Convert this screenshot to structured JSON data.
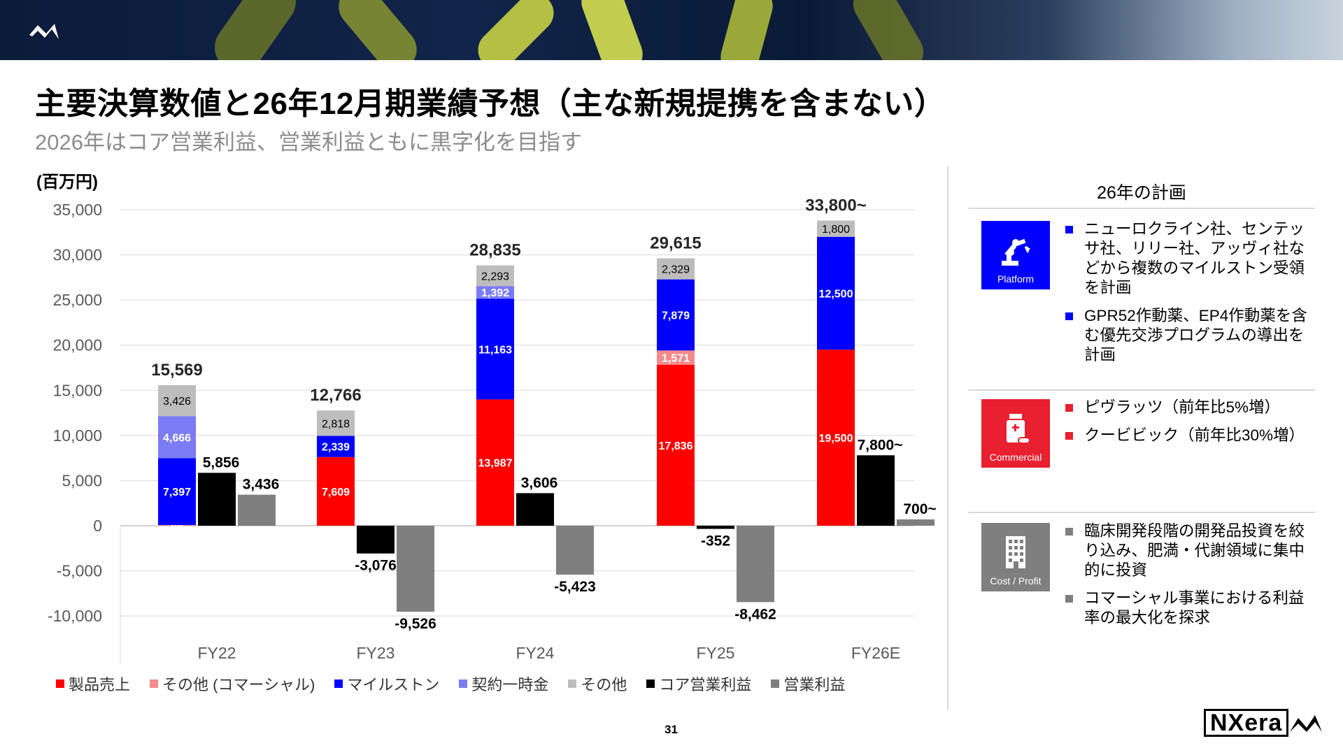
{
  "header": {
    "title": "主要決算数値と26年12月期業績予想（主な新規提携を含まない）",
    "subtitle": "2026年はコア営業利益、営業利益ともに黒字化を目指す"
  },
  "chart": {
    "unit_label": "(百万円)",
    "y_ticks": [
      "35,000",
      "30,000",
      "25,000",
      "20,000",
      "15,000",
      "10,000",
      "5,000",
      "0",
      "-5,000",
      "-10,000"
    ],
    "legend": [
      {
        "label": "製品売上",
        "color": "#ff0000"
      },
      {
        "label": "その他 (コマーシャル)",
        "color": "#f28c8c"
      },
      {
        "label": "マイルストン",
        "color": "#0000ff"
      },
      {
        "label": "契約一時金",
        "color": "#7b7bf5"
      },
      {
        "label": "その他",
        "color": "#bdbdbd"
      },
      {
        "label": "コア営業利益",
        "color": "#000000"
      },
      {
        "label": "営業利益",
        "color": "#7f7f7f"
      }
    ]
  },
  "chart_data": {
    "type": "bar",
    "categories": [
      "FY22",
      "FY23",
      "FY24",
      "FY25",
      "FY26E"
    ],
    "ylim": [
      -10000,
      35000
    ],
    "ylabel": "(百万円)",
    "stacked_revenue": {
      "series": [
        {
          "name": "製品売上",
          "values": [
            0,
            7609,
            13987,
            17836,
            19500
          ],
          "labels": [
            "",
            "7,609",
            "13,987",
            "17,836",
            "19,500"
          ],
          "color": "#ff0000",
          "label_color": "#ffffff"
        },
        {
          "name": "その他 (コマーシャル)",
          "values": [
            80,
            0,
            0,
            1571,
            0
          ],
          "labels": [
            "80",
            "",
            "",
            "1,571",
            ""
          ],
          "color": "#f28c8c",
          "label_color": "#ffffff"
        },
        {
          "name": "マイルストン",
          "values": [
            7397,
            2339,
            11163,
            7879,
            12500
          ],
          "labels": [
            "7,397",
            "2,339",
            "11,163",
            "7,879",
            "12,500"
          ],
          "color": "#0000ff",
          "label_color": "#ffffff"
        },
        {
          "name": "契約一時金",
          "values": [
            4666,
            0,
            1392,
            0,
            0
          ],
          "labels": [
            "4,666",
            "",
            "1,392",
            "",
            ""
          ],
          "color": "#7b7bf5",
          "label_color": "#ffffff"
        },
        {
          "name": "その他",
          "values": [
            3426,
            2818,
            2293,
            2329,
            1800
          ],
          "labels": [
            "3,426",
            "2,818",
            "2,293",
            "2,329",
            "1,800"
          ],
          "color": "#bdbdbd",
          "label_color": "#000000"
        }
      ],
      "totals": [
        15569,
        12766,
        28835,
        29615,
        33800
      ],
      "total_labels": [
        "15,569",
        "12,766",
        "28,835",
        "29,615",
        "33,800~"
      ]
    },
    "series": [
      {
        "name": "コア営業利益",
        "values": [
          5856,
          -3076,
          3606,
          -352,
          7800
        ],
        "labels": [
          "5,856",
          "-3,076",
          "3,606",
          "-352",
          "7,800~"
        ],
        "color": "#000000"
      },
      {
        "name": "営業利益",
        "values": [
          3436,
          -9526,
          -5423,
          -8462,
          700
        ],
        "labels": [
          "3,436",
          "-9,526",
          "-5,423",
          "-8,462",
          "700~"
        ],
        "color": "#7f7f7f"
      }
    ]
  },
  "plan": {
    "header": "26年の計画",
    "sections": [
      {
        "icon": "robot-arm-icon",
        "icon_label": "Platform",
        "color": "#0000ff",
        "bullets": [
          "ニューロクライン社、センテッサ社、リリー社、アッヴィ社などから複数のマイルストン受領を計画",
          "GPR52作動薬、EP4作動薬を含む優先交渉プログラムの導出を計画"
        ]
      },
      {
        "icon": "medicine-bottle-icon",
        "icon_label": "Commercial",
        "color": "#e8202f",
        "bullets": [
          "ピヴラッツ（前年比5%増）",
          "クービビック（前年比30%増）"
        ]
      },
      {
        "icon": "building-icon",
        "icon_label": "Cost / Profit",
        "color": "#7f7f7f",
        "bullets": [
          "臨床開発段階の開発品投資を絞り込み、肥満・代謝領域に集中的に投資",
          "コマーシャル事業における利益率の最大化を探求"
        ]
      }
    ]
  },
  "footer": {
    "page_number": "31",
    "brand": "NXera"
  }
}
